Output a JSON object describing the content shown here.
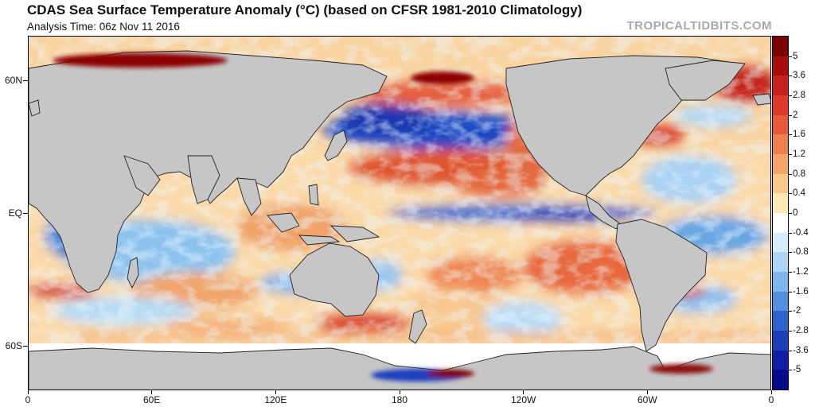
{
  "header": {
    "title": "CDAS Sea Surface Temperature Anomaly (°C) (based on CFSR 1981-2010 Climatology)",
    "analysis_time": "Analysis Time: 06z Nov 11 2016",
    "brand": "TROPICALTIDBITS.COM"
  },
  "map": {
    "projection": "equirectangular",
    "lon_range": [
      0,
      360
    ],
    "lat_range": [
      -80,
      80
    ],
    "land_color": "#c6c6c6",
    "latitude_labels": [
      {
        "label": "60N",
        "lat": 60
      },
      {
        "label": "EQ",
        "lat": 0
      },
      {
        "label": "60S",
        "lat": -60
      }
    ],
    "longitude_labels": [
      {
        "label": "0",
        "lon": 0
      },
      {
        "label": "60E",
        "lon": 60
      },
      {
        "label": "120E",
        "lon": 120
      },
      {
        "label": "180",
        "lon": 180
      },
      {
        "label": "120W",
        "lon": 240
      },
      {
        "label": "60W",
        "lon": 300
      },
      {
        "label": "0",
        "lon": 360
      }
    ]
  },
  "colorbar": {
    "labels": [
      "5",
      "3.6",
      "2.8",
      "2",
      "1.6",
      "1.2",
      "0.8",
      "0.4",
      "0",
      "-0.4",
      "-0.8",
      "-1.2",
      "-1.6",
      "-2",
      "-2.8",
      "-3.6",
      "-5"
    ],
    "colors": [
      "#7a0000",
      "#a80d0d",
      "#c81f1f",
      "#dc3a2c",
      "#e65a3a",
      "#ee7f4e",
      "#f4a468",
      "#f9c98c",
      "#fde9b6",
      "#ffffff",
      "#d6ecfa",
      "#acd4f3",
      "#7cb6ea",
      "#5090dc",
      "#2e64cc",
      "#1c3fb8",
      "#0f1fa6",
      "#050a8c"
    ]
  }
}
